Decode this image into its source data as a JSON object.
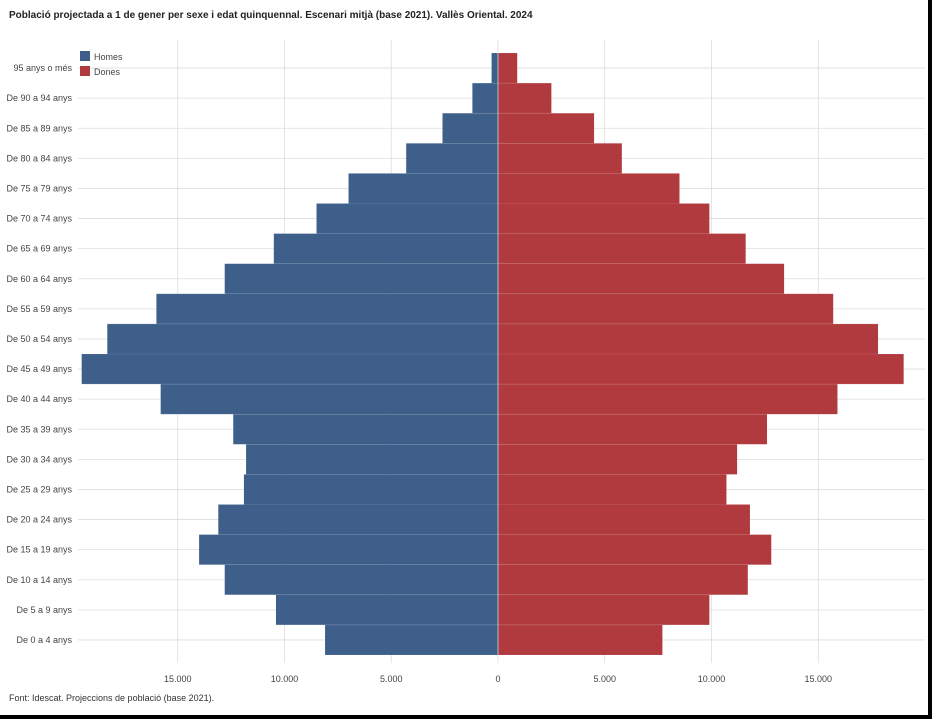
{
  "title": "Població projectada a 1 de gener per sexe i edat quinquennal. Escenari mitjà (base 2021). Vallès Oriental. 2024",
  "source": "Font: Idescat. Projeccions de població (base 2021).",
  "colors": {
    "men": "#3e5f8a",
    "women": "#b03a3e",
    "grid": "#dddddd",
    "axis": "#bbbbbb"
  },
  "chart_data": {
    "type": "bar",
    "orientation": "horizontal-population-pyramid",
    "categories": [
      "De 0 a 4 anys",
      "De 5 a 9 anys",
      "De 10 a 14 anys",
      "De 15 a 19 anys",
      "De 20 a 24 anys",
      "De 25 a 29 anys",
      "De 30 a 34 anys",
      "De 35 a 39 anys",
      "De 40 a 44 anys",
      "De 45 a 49 anys",
      "De 50 a 54 anys",
      "De 55 a 59 anys",
      "De 60 a 64 anys",
      "De 65 a 69 anys",
      "De 70 a 74 anys",
      "De 75 a 79 anys",
      "De 80 a 84 anys",
      "De 85 a 89 anys",
      "De 90 a 94 anys",
      "95 anys o més"
    ],
    "series": [
      {
        "name": "Homes",
        "values": [
          8100,
          10400,
          12800,
          14000,
          13100,
          11900,
          11800,
          12400,
          15800,
          19500,
          18300,
          16000,
          12800,
          10500,
          8500,
          7000,
          4300,
          2600,
          1200,
          300
        ]
      },
      {
        "name": "Dones",
        "values": [
          7700,
          9900,
          11700,
          12800,
          11800,
          10700,
          11200,
          12600,
          15900,
          19000,
          17800,
          15700,
          13400,
          11600,
          9900,
          8500,
          5800,
          4500,
          2500,
          900
        ]
      }
    ],
    "xticks": [
      15000,
      10000,
      5000,
      0,
      5000,
      10000,
      15000
    ],
    "xtick_labels": [
      "15.000",
      "10.000",
      "5.000",
      "0",
      "5.000",
      "10.000",
      "15.000"
    ],
    "xlim": [
      -20000,
      20000
    ],
    "xlabel": "",
    "ylabel": "",
    "legend": {
      "position": "top-left",
      "entries": [
        "Homes",
        "Dones"
      ]
    },
    "grid": true
  }
}
